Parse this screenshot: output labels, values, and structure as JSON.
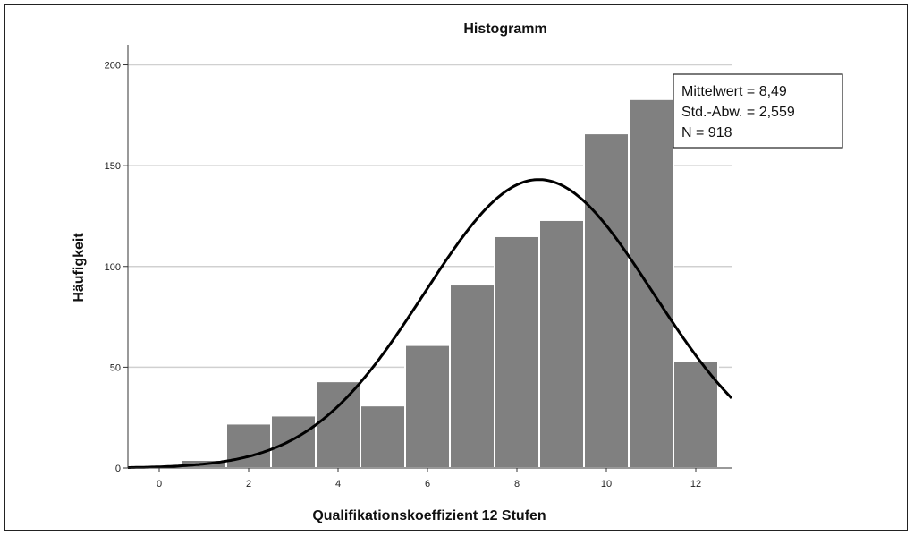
{
  "chart_data": {
    "type": "bar",
    "title": "Histogramm",
    "xlabel": "Qualifikationskoeffizient 12 Stufen",
    "ylabel": "Häufigkeit",
    "x_bin_centers": [
      1,
      2,
      3,
      4,
      5,
      6,
      7,
      8,
      9,
      10,
      11,
      12
    ],
    "values": [
      4,
      22,
      26,
      43,
      31,
      61,
      91,
      115,
      123,
      166,
      183,
      53
    ],
    "xlim": [
      -0.7,
      12.8
    ],
    "ylim": [
      0,
      210
    ],
    "x_ticks": [
      "0",
      "2",
      "4",
      "6",
      "8",
      "10",
      "12"
    ],
    "x_tick_values": [
      0,
      2,
      4,
      6,
      8,
      10,
      12
    ],
    "y_ticks": [
      "0",
      "50",
      "100",
      "150",
      "200"
    ],
    "y_tick_values": [
      0,
      50,
      100,
      150,
      200
    ],
    "grid": "horizontal",
    "normal_curve": {
      "mean": 8.49,
      "sd": 2.559,
      "n": 918,
      "bin_width": 1
    },
    "stats_box": {
      "placement": "top-right",
      "lines": [
        "Mittelwert = 8,49",
        "Std.-Abw. = 2,559",
        "N = 918"
      ]
    },
    "colors": {
      "bar": "#808080",
      "bar_edge": "#ffffff",
      "curve": "#000000",
      "grid": "#d0d0d0"
    }
  }
}
